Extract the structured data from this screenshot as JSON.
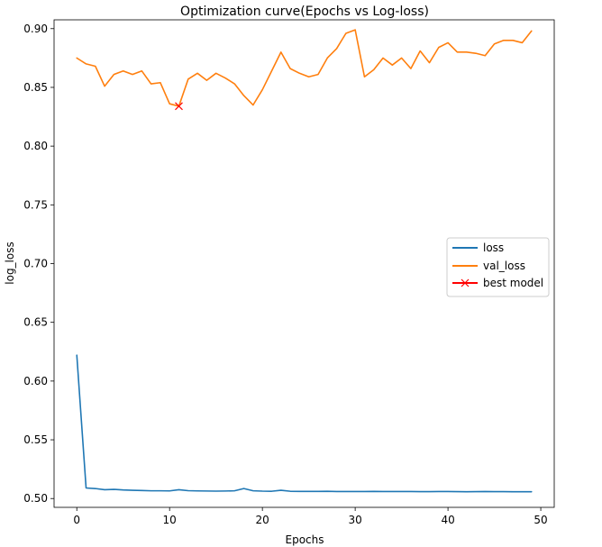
{
  "chart_data": {
    "type": "line",
    "title": "Optimization curve(Epochs vs Log-loss)",
    "xlabel": "Epochs",
    "ylabel": "log_loss",
    "xlim": [
      -2.45,
      51.45
    ],
    "ylim": [
      0.4925,
      0.9075
    ],
    "xticks": [
      0,
      10,
      20,
      30,
      40,
      50
    ],
    "yticks": [
      0.5,
      0.55,
      0.6,
      0.65,
      0.7,
      0.75,
      0.8,
      0.85,
      0.9
    ],
    "ytick_labels": [
      "0.50",
      "0.55",
      "0.60",
      "0.65",
      "0.70",
      "0.75",
      "0.80",
      "0.85",
      "0.90"
    ],
    "grid": false,
    "legend_position": "center-right",
    "x": [
      0,
      1,
      2,
      3,
      4,
      5,
      6,
      7,
      8,
      9,
      10,
      11,
      12,
      13,
      14,
      15,
      16,
      17,
      18,
      19,
      20,
      21,
      22,
      23,
      24,
      25,
      26,
      27,
      28,
      29,
      30,
      31,
      32,
      33,
      34,
      35,
      36,
      37,
      38,
      39,
      40,
      41,
      42,
      43,
      44,
      45,
      46,
      47,
      48,
      49
    ],
    "series": [
      {
        "name": "loss",
        "color": "#1f77b4",
        "values": [
          0.622,
          0.509,
          0.5085,
          0.5075,
          0.5078,
          0.5073,
          0.507,
          0.5068,
          0.5066,
          0.5066,
          0.5065,
          0.5075,
          0.5067,
          0.5065,
          0.5064,
          0.5063,
          0.5064,
          0.5066,
          0.5085,
          0.5066,
          0.5063,
          0.5062,
          0.507,
          0.5062,
          0.5061,
          0.5061,
          0.5061,
          0.5062,
          0.506,
          0.506,
          0.506,
          0.506,
          0.5061,
          0.506,
          0.506,
          0.506,
          0.506,
          0.5059,
          0.5059,
          0.506,
          0.506,
          0.5059,
          0.5058,
          0.5059,
          0.506,
          0.5059,
          0.5059,
          0.5058,
          0.5058,
          0.5058
        ]
      },
      {
        "name": "val_loss",
        "color": "#ff7f0e",
        "values": [
          0.875,
          0.87,
          0.868,
          0.851,
          0.861,
          0.864,
          0.861,
          0.864,
          0.853,
          0.854,
          0.836,
          0.834,
          0.857,
          0.862,
          0.856,
          0.862,
          0.858,
          0.853,
          0.843,
          0.835,
          0.848,
          0.864,
          0.88,
          0.866,
          0.862,
          0.859,
          0.861,
          0.875,
          0.883,
          0.896,
          0.899,
          0.859,
          0.865,
          0.875,
          0.869,
          0.875,
          0.866,
          0.881,
          0.871,
          0.884,
          0.888,
          0.88,
          0.88,
          0.879,
          0.877,
          0.887,
          0.89,
          0.89,
          0.888,
          0.898
        ]
      }
    ],
    "best_model": {
      "name": "best model",
      "x": 11,
      "y": 0.834,
      "color": "#ff0000",
      "marker": "x"
    }
  }
}
